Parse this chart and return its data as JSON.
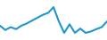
{
  "x": [
    0,
    1,
    2,
    3,
    4,
    5,
    6,
    7,
    8,
    9,
    10,
    11,
    12,
    13,
    14,
    15,
    16,
    17,
    18,
    19,
    20
  ],
  "y": [
    5,
    3.5,
    4.5,
    3.8,
    5.0,
    5.8,
    6.8,
    7.8,
    8.8,
    9.5,
    11.5,
    6.5,
    2.5,
    5.5,
    2.5,
    4.0,
    2.5,
    3.0,
    3.8,
    4.5,
    6.5
  ],
  "line_color": "#2196c8",
  "line_width": 1.5,
  "background_color": "#ffffff",
  "ylim_min": 0,
  "ylim_max": 14
}
